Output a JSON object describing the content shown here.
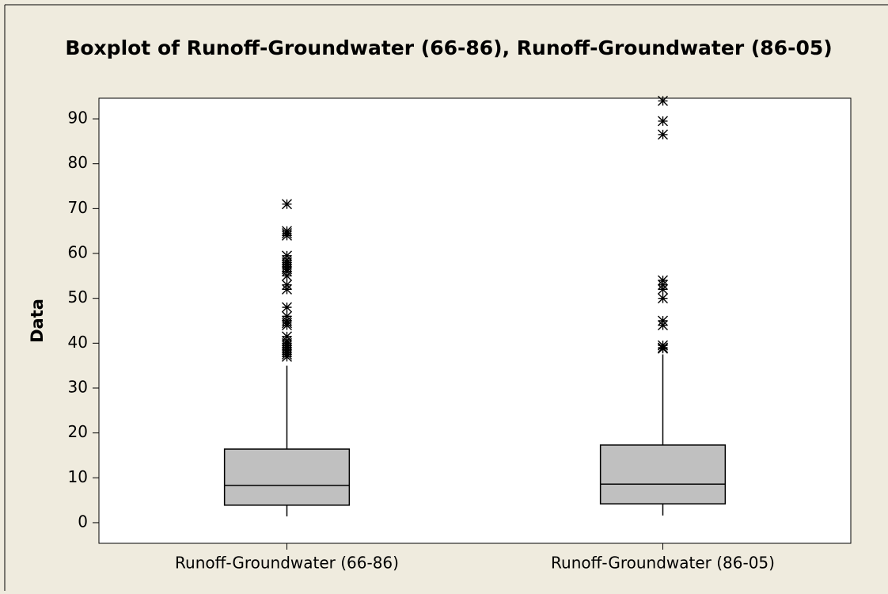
{
  "chart_data": {
    "type": "box",
    "title": "Boxplot of Runoff-Groundwater (66-86), Runoff-Groundwater (86-05)",
    "y_label": "Data",
    "categories": [
      "Runoff-Groundwater (66-86)",
      "Runoff-Groundwater (86-05)"
    ],
    "box_color": "#c0c0c0",
    "boxes": [
      {
        "whislo": 1.4,
        "q1": 3.9,
        "med": 8.3,
        "q3": 16.4,
        "whishi": 35,
        "fliers": [
          71,
          65,
          64.5,
          64,
          59.5,
          58.5,
          58,
          57.5,
          57,
          56.5,
          56,
          55,
          53,
          52,
          48,
          46,
          45,
          44.5,
          44,
          41.5,
          40.5,
          40,
          39.5,
          39,
          38.5,
          38,
          37.5,
          37
        ]
      },
      {
        "whislo": 1.6,
        "q1": 4.2,
        "med": 8.6,
        "q3": 17.3,
        "whishi": 37.5,
        "fliers": [
          94,
          89.5,
          86.5,
          54,
          53,
          52,
          50,
          45,
          44,
          39.5,
          39,
          38.8
        ]
      }
    ],
    "ylim": [
      -4.6,
      94.6
    ],
    "yticks": [
      0,
      10,
      20,
      30,
      40,
      50,
      60,
      70,
      80,
      90
    ]
  }
}
